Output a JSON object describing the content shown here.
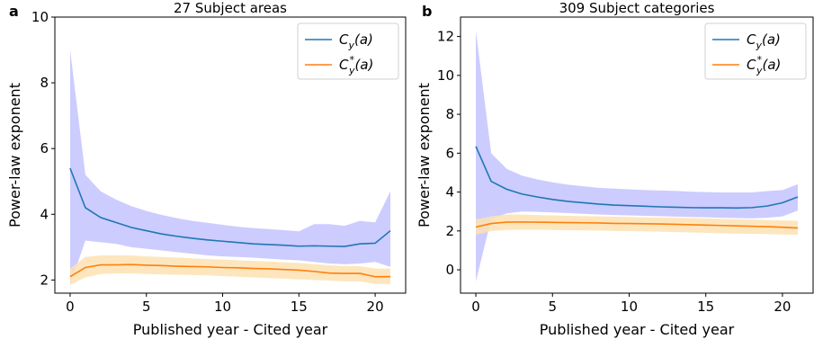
{
  "chart_data": [
    {
      "type": "line",
      "panel_label": "a",
      "title": "27 Subject areas",
      "xlabel": "Published year - Cited year",
      "ylabel": "Power-law exponent",
      "xlim": [
        -1,
        22
      ],
      "ylim": [
        1.6,
        10
      ],
      "xticks": [
        "0",
        "5",
        "10",
        "15",
        "20"
      ],
      "yticks": [
        "2",
        "4",
        "6",
        "8",
        "10"
      ],
      "legend_position": "top-right",
      "grid": false,
      "x": [
        0,
        1,
        2,
        3,
        4,
        5,
        6,
        7,
        8,
        9,
        10,
        11,
        12,
        13,
        14,
        15,
        16,
        17,
        18,
        19,
        20,
        21
      ],
      "series": [
        {
          "name": "C_y(a)",
          "legend_main": "C",
          "legend_sub": "y",
          "legend_sup": "",
          "legend_arg": "(a)",
          "color": "#1f77b4",
          "band_color": "#ccccff",
          "values": [
            5.4,
            4.2,
            3.9,
            3.75,
            3.6,
            3.5,
            3.4,
            3.33,
            3.27,
            3.22,
            3.18,
            3.14,
            3.1,
            3.08,
            3.06,
            3.03,
            3.04,
            3.03,
            3.02,
            3.1,
            3.12,
            3.5
          ],
          "band_upper": [
            9.0,
            5.2,
            4.7,
            4.45,
            4.25,
            4.1,
            3.98,
            3.88,
            3.8,
            3.74,
            3.68,
            3.62,
            3.58,
            3.55,
            3.52,
            3.48,
            3.7,
            3.7,
            3.65,
            3.8,
            3.75,
            4.7
          ],
          "band_lower": [
            1.85,
            3.2,
            3.15,
            3.1,
            3.0,
            2.95,
            2.9,
            2.85,
            2.8,
            2.75,
            2.72,
            2.7,
            2.68,
            2.65,
            2.62,
            2.6,
            2.55,
            2.5,
            2.48,
            2.5,
            2.55,
            2.4
          ]
        },
        {
          "name": "C*_y(a)",
          "legend_main": "C",
          "legend_sub": "y",
          "legend_sup": "*",
          "legend_arg": "(a)",
          "color": "#ff7f0e",
          "band_color": "#fde2b3",
          "values": [
            2.1,
            2.38,
            2.46,
            2.46,
            2.47,
            2.45,
            2.44,
            2.42,
            2.41,
            2.4,
            2.38,
            2.37,
            2.35,
            2.34,
            2.32,
            2.3,
            2.26,
            2.21,
            2.2,
            2.2,
            2.1,
            2.1
          ],
          "band_upper": [
            2.35,
            2.7,
            2.75,
            2.75,
            2.75,
            2.72,
            2.7,
            2.68,
            2.66,
            2.64,
            2.62,
            2.6,
            2.58,
            2.56,
            2.54,
            2.52,
            2.48,
            2.45,
            2.42,
            2.42,
            2.35,
            2.35
          ],
          "band_lower": [
            1.85,
            2.08,
            2.18,
            2.2,
            2.2,
            2.18,
            2.17,
            2.16,
            2.15,
            2.14,
            2.12,
            2.1,
            2.08,
            2.06,
            2.04,
            2.02,
            2.0,
            1.98,
            1.96,
            1.96,
            1.88,
            1.88
          ]
        }
      ]
    },
    {
      "type": "line",
      "panel_label": "b",
      "title": "309 Subject categories",
      "xlabel": "Published year - Cited year",
      "ylabel": "Power-law exponent",
      "xlim": [
        -1,
        22
      ],
      "ylim": [
        -1.2,
        13
      ],
      "xticks": [
        "0",
        "5",
        "10",
        "15",
        "20"
      ],
      "yticks": [
        "0",
        "2",
        "4",
        "6",
        "8",
        "10",
        "12"
      ],
      "legend_position": "top-right",
      "grid": false,
      "x": [
        0,
        1,
        2,
        3,
        4,
        5,
        6,
        7,
        8,
        9,
        10,
        11,
        12,
        13,
        14,
        15,
        16,
        17,
        18,
        19,
        20,
        21
      ],
      "series": [
        {
          "name": "C_y(a)",
          "legend_main": "C",
          "legend_sub": "y",
          "legend_sup": "",
          "legend_arg": "(a)",
          "color": "#1f77b4",
          "band_color": "#ccccff",
          "values": [
            6.35,
            4.55,
            4.15,
            3.9,
            3.75,
            3.62,
            3.52,
            3.45,
            3.38,
            3.33,
            3.3,
            3.27,
            3.24,
            3.22,
            3.2,
            3.19,
            3.19,
            3.18,
            3.2,
            3.28,
            3.45,
            3.75
          ],
          "band_upper": [
            12.3,
            6.0,
            5.2,
            4.85,
            4.65,
            4.5,
            4.38,
            4.3,
            4.22,
            4.18,
            4.14,
            4.1,
            4.08,
            4.06,
            4.02,
            4.0,
            3.98,
            3.98,
            3.98,
            4.05,
            4.1,
            4.4
          ],
          "band_lower": [
            -0.6,
            2.6,
            2.9,
            3.0,
            2.98,
            2.95,
            2.92,
            2.88,
            2.85,
            2.82,
            2.8,
            2.78,
            2.76,
            2.74,
            2.72,
            2.7,
            2.68,
            2.66,
            2.65,
            2.68,
            2.75,
            3.05
          ]
        },
        {
          "name": "C*_y(a)",
          "legend_main": "C",
          "legend_sub": "y",
          "legend_sup": "*",
          "legend_arg": "(a)",
          "color": "#ff7f0e",
          "band_color": "#fde2b3",
          "values": [
            2.2,
            2.38,
            2.45,
            2.46,
            2.45,
            2.44,
            2.43,
            2.42,
            2.41,
            2.39,
            2.38,
            2.37,
            2.36,
            2.34,
            2.32,
            2.3,
            2.28,
            2.26,
            2.24,
            2.22,
            2.19,
            2.15
          ],
          "band_upper": [
            2.6,
            2.75,
            2.85,
            2.85,
            2.82,
            2.8,
            2.78,
            2.76,
            2.75,
            2.74,
            2.72,
            2.7,
            2.69,
            2.68,
            2.66,
            2.64,
            2.62,
            2.6,
            2.58,
            2.56,
            2.54,
            2.52
          ],
          "band_lower": [
            1.8,
            2.0,
            2.05,
            2.06,
            2.06,
            2.05,
            2.04,
            2.03,
            2.02,
            2.0,
            1.99,
            1.98,
            1.96,
            1.94,
            1.92,
            1.9,
            1.88,
            1.86,
            1.85,
            1.84,
            1.82,
            1.8
          ]
        }
      ]
    }
  ]
}
